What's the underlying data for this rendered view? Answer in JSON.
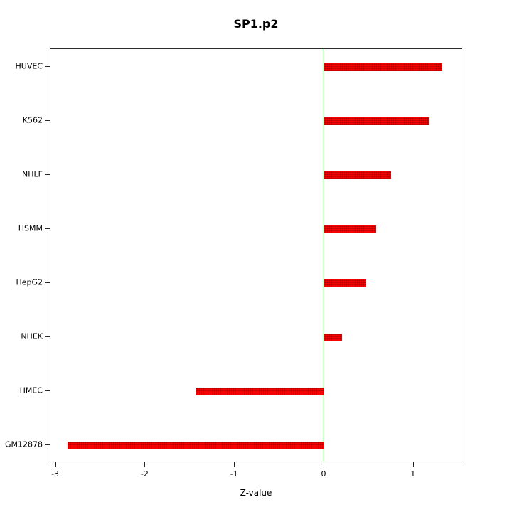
{
  "title": "SP1.p2",
  "chart_data": {
    "type": "bar",
    "orientation": "horizontal",
    "title": "SP1.p2",
    "xlabel": "Z-value",
    "ylabel": "",
    "categories": [
      "HUVEC",
      "K562",
      "NHLF",
      "HSMM",
      "HepG2",
      "NHEK",
      "HMEC",
      "GM12878"
    ],
    "values": [
      1.32,
      1.17,
      0.75,
      0.58,
      0.47,
      0.2,
      -1.43,
      -2.87
    ],
    "xlim": [
      -3.06,
      1.55
    ],
    "xticks": [
      -3,
      -2,
      -1,
      0,
      1
    ],
    "zero_line": 0,
    "grid": false,
    "legend": "none",
    "colors": {
      "bar": "#ff0000",
      "bar_dots": "#aa0000",
      "zero_line": "#00cc00",
      "axis": "#2a2a2a",
      "text": "#000000"
    }
  }
}
